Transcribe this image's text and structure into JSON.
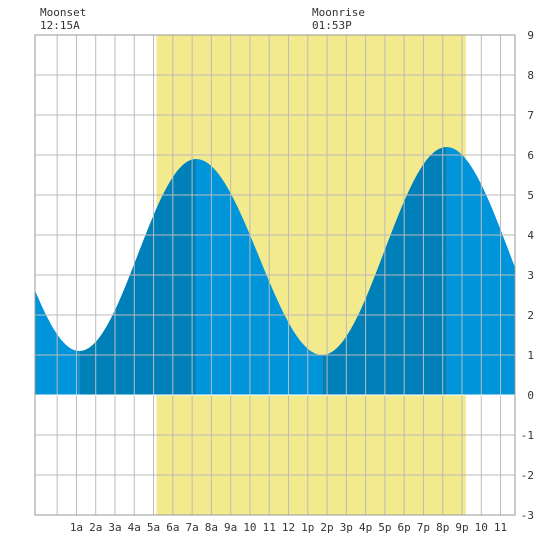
{
  "header": {
    "moonset_label": "Moonset",
    "moonset_time": "12:15A",
    "moonrise_label": "Moonrise",
    "moonrise_time": "01:53P"
  },
  "chart_data": {
    "type": "area",
    "title": "",
    "xlabel": "",
    "ylabel": "",
    "x_range_hours": [
      -1.15,
      23.75
    ],
    "ylim": [
      -3,
      9
    ],
    "y_ticks": [
      -3,
      -2,
      -1,
      0,
      1,
      2,
      3,
      4,
      5,
      6,
      7,
      8,
      9
    ],
    "x_tick_labels": [
      "1a",
      "2a",
      "3a",
      "4a",
      "5a",
      "6a",
      "7a",
      "8a",
      "9a",
      "10",
      "11",
      "12",
      "1p",
      "2p",
      "3p",
      "4p",
      "5p",
      "6p",
      "7p",
      "8p",
      "9p",
      "10",
      "11"
    ],
    "grid": true,
    "daylight_window_hours": [
      5.15,
      21.2
    ],
    "tide_extremes": [
      {
        "hour": 1.15,
        "height": 1.1,
        "kind": "low"
      },
      {
        "hour": 7.2,
        "height": 5.9,
        "kind": "high"
      },
      {
        "hour": 13.75,
        "height": 1.0,
        "kind": "low"
      },
      {
        "hour": 20.2,
        "height": 6.2,
        "kind": "high"
      }
    ],
    "tide_start": {
      "hour": -1.15,
      "height": 1.4
    },
    "tide_end": {
      "hour": 23.75,
      "height": 2.2
    },
    "colors": {
      "daylight": "#f2ea8c",
      "tide_light": "#0095da",
      "tide_dark": "#0080b9",
      "grid": "#bbbbbb",
      "background": "#ffffff"
    }
  }
}
